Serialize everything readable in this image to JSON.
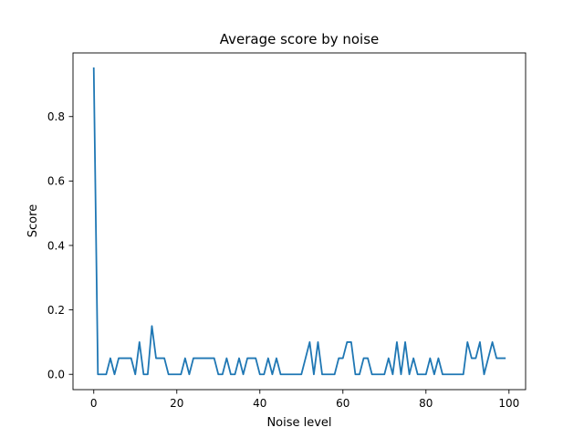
{
  "chart_data": {
    "type": "line",
    "title": "Average score by noise",
    "xlabel": "Noise level",
    "ylabel": "Score",
    "xlim": [
      -5,
      104
    ],
    "ylim": [
      -0.0475,
      0.9975
    ],
    "xticks": [
      0,
      20,
      40,
      60,
      80,
      100
    ],
    "yticks": [
      0.0,
      0.2,
      0.4,
      0.6,
      0.8
    ],
    "xtick_labels": [
      "0",
      "20",
      "40",
      "60",
      "80",
      "100"
    ],
    "ytick_labels": [
      "0.0",
      "0.2",
      "0.4",
      "0.6",
      "0.8"
    ],
    "grid": false,
    "line_color": "#1f77b4",
    "series": [
      {
        "x": [
          0,
          1,
          2,
          3,
          4,
          5,
          6,
          7,
          8,
          9,
          10,
          11,
          12,
          13,
          14,
          15,
          16,
          17,
          18,
          19,
          20,
          21,
          22,
          23,
          24,
          25,
          26,
          27,
          28,
          29,
          30,
          31,
          32,
          33,
          34,
          35,
          36,
          37,
          38,
          39,
          40,
          41,
          42,
          43,
          44,
          45,
          46,
          47,
          48,
          49,
          50,
          51,
          52,
          53,
          54,
          55,
          56,
          57,
          58,
          59,
          60,
          61,
          62,
          63,
          64,
          65,
          66,
          67,
          68,
          69,
          70,
          71,
          72,
          73,
          74,
          75,
          76,
          77,
          78,
          79,
          80,
          81,
          82,
          83,
          84,
          85,
          86,
          87,
          88,
          89,
          90,
          91,
          92,
          93,
          94,
          95,
          96,
          97,
          98,
          99
        ],
        "values": [
          0.95,
          0,
          0,
          0,
          0.05,
          0,
          0.05,
          0.05,
          0.05,
          0.05,
          0,
          0.1,
          0,
          0,
          0.15,
          0.05,
          0.05,
          0.05,
          0,
          0,
          0,
          0,
          0.05,
          0,
          0.05,
          0.05,
          0.05,
          0.05,
          0.05,
          0.05,
          0,
          0,
          0.05,
          0,
          0,
          0.05,
          0,
          0.05,
          0.05,
          0.05,
          0,
          0,
          0.05,
          0,
          0.05,
          0,
          0,
          0,
          0,
          0,
          0,
          0.05,
          0.1,
          0,
          0.1,
          0,
          0,
          0,
          0,
          0.05,
          0.05,
          0.1,
          0.1,
          0,
          0,
          0.05,
          0.05,
          0,
          0,
          0,
          0,
          0.05,
          0,
          0.1,
          0,
          0.1,
          0,
          0.05,
          0,
          0,
          0,
          0.05,
          0,
          0.05,
          0,
          0,
          0,
          0,
          0,
          0,
          0.1,
          0.05,
          0.05,
          0.1,
          0,
          0.05,
          0.1,
          0.05,
          0.05,
          0.05
        ]
      }
    ]
  }
}
